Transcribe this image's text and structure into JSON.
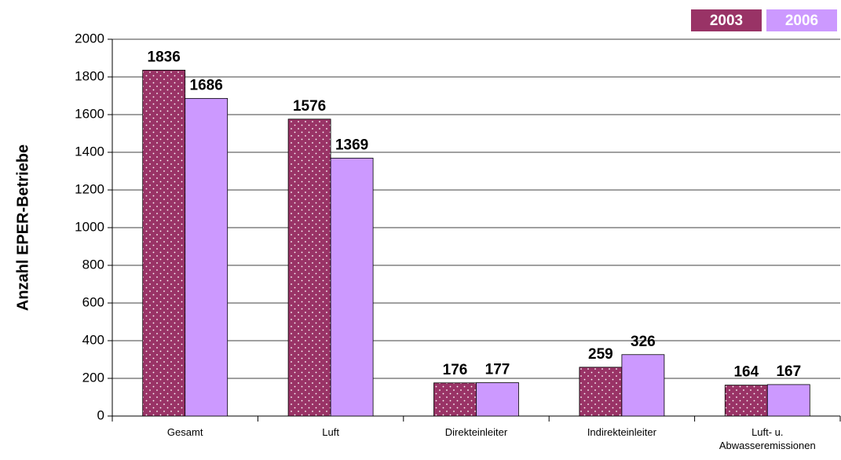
{
  "chart_data": {
    "type": "bar",
    "y_label": "Anzahl EPER-Betriebe",
    "categories": [
      "Gesamt",
      "Luft",
      "Direkteinleiter",
      "Indirekteinleiter",
      "Luft- u. Abwasseremissionen"
    ],
    "series": [
      {
        "name": "2003",
        "color": "#993366",
        "pattern": "dots",
        "values": [
          1836,
          1576,
          176,
          259,
          164
        ]
      },
      {
        "name": "2006",
        "color": "#cc99ff",
        "values": [
          1686,
          1369,
          177,
          326,
          167
        ]
      }
    ],
    "ylim": [
      0,
      2000
    ],
    "yticks": [
      0,
      200,
      400,
      600,
      800,
      1000,
      1200,
      1400,
      1600,
      1800,
      2000
    ],
    "grid": true,
    "legend": "top-right"
  }
}
